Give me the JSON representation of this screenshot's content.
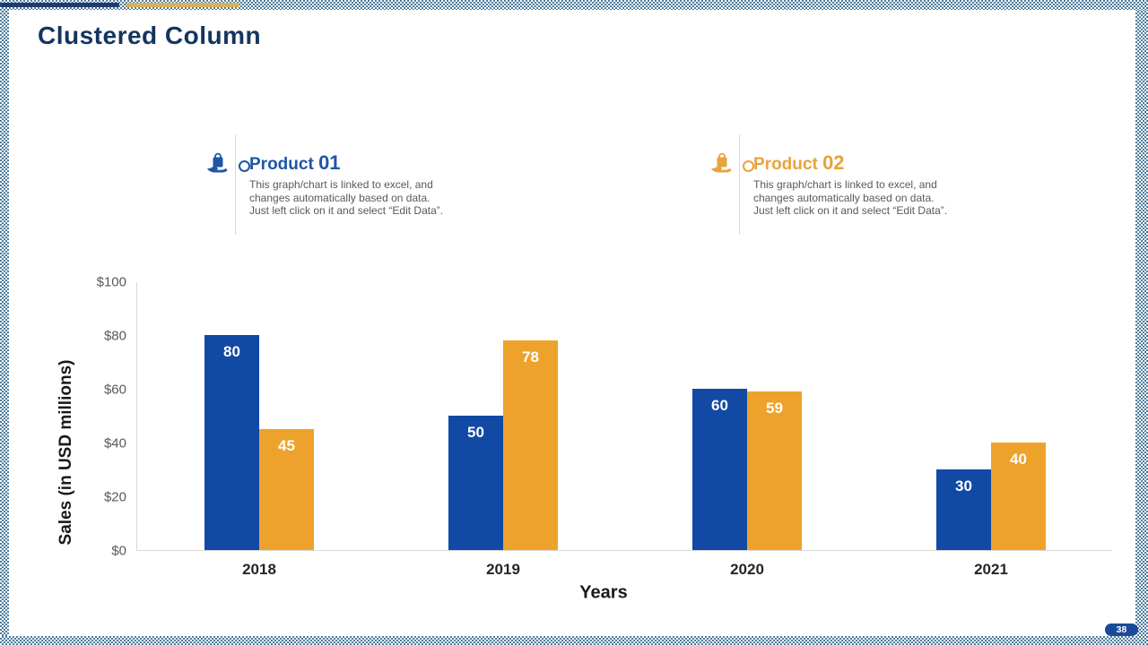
{
  "slide": {
    "title": "Clustered Column",
    "page_number": "38",
    "accent_colors": {
      "navy": "#1E3C6E",
      "gold": "#D8B15C",
      "checker": "#4E7D9D"
    }
  },
  "legend": {
    "items": [
      {
        "name": "Product",
        "number": "01",
        "color": "#1E56A5",
        "icon": "bag-on-hand-icon",
        "description": "This graph/chart is linked to excel, and\nchanges automatically based on data.\nJust left click on it and select “Edit Data”."
      },
      {
        "name": "Product",
        "number": "02",
        "color": "#E8A33B",
        "icon": "bag-on-hand-icon",
        "description": "This graph/chart is linked to excel, and\nchanges automatically based on data.\nJust left click on it and select “Edit Data”."
      }
    ]
  },
  "chart_data": {
    "type": "bar",
    "title": "",
    "categories": [
      "2018",
      "2019",
      "2020",
      "2021"
    ],
    "series": [
      {
        "name": "Product 01",
        "color": "#1149A5",
        "values": [
          80,
          50,
          60,
          30
        ]
      },
      {
        "name": "Product 02",
        "color": "#EDA32B",
        "values": [
          45,
          78,
          59,
          40
        ]
      }
    ],
    "xlabel": "Years",
    "ylabel": "Sales (in USD millions)",
    "ylim": [
      0,
      100
    ],
    "y_ticks": [
      {
        "value": 0,
        "label": "$0"
      },
      {
        "value": 20,
        "label": "$20"
      },
      {
        "value": 40,
        "label": "$40"
      },
      {
        "value": 60,
        "label": "$60"
      },
      {
        "value": 80,
        "label": "$80"
      },
      {
        "value": 100,
        "label": "$100"
      }
    ],
    "grid": false,
    "bar_labels": true,
    "bar_label_color": "#ffffff",
    "legend_position": "top"
  }
}
